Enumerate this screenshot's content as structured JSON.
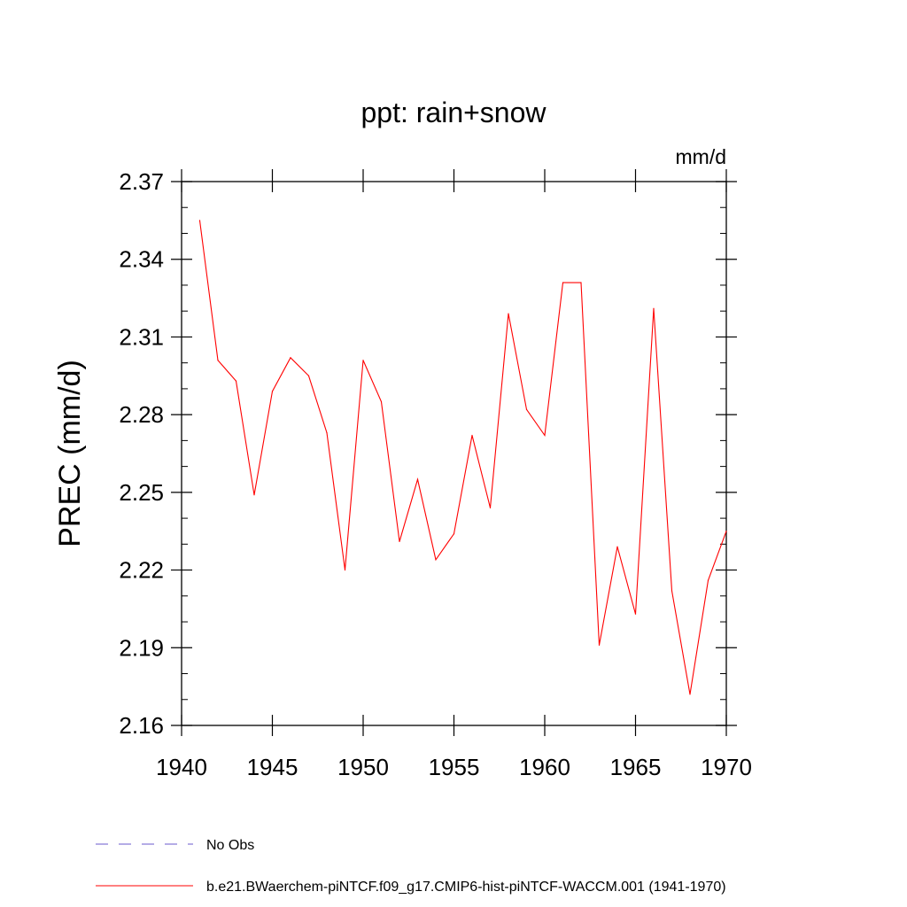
{
  "chart_data": {
    "type": "line",
    "title": "ppt: rain+snow",
    "units_label": "mm/d",
    "ylabel": "PREC  (mm/d)",
    "xlabel": "",
    "xlim": [
      1940,
      1970
    ],
    "ylim": [
      2.16,
      2.37
    ],
    "xticks": [
      1940,
      1945,
      1950,
      1955,
      1960,
      1965,
      1970
    ],
    "xtick_labels": [
      "1940",
      "1945",
      "1950",
      "1955",
      "1960",
      "1965",
      "1970"
    ],
    "yticks": [
      2.16,
      2.19,
      2.22,
      2.25,
      2.28,
      2.31,
      2.34,
      2.37
    ],
    "ytick_labels": [
      "2.16",
      "2.19",
      "2.22",
      "2.25",
      "2.28",
      "2.31",
      "2.34",
      "2.37"
    ],
    "grid": false,
    "legend_position": "bottom-left",
    "legend": [
      {
        "name": "No Obs",
        "color": "#6a5acd",
        "style": "dashed"
      },
      {
        "name": "b.e21.BWaerchem-piNTCF.f09_g17.CMIP6-hist-piNTCF-WACCM.001 (1941-1970)",
        "color": "#ff0000",
        "style": "solid"
      }
    ],
    "series": [
      {
        "name": "b.e21.BWaerchem-piNTCF.f09_g17.CMIP6-hist-piNTCF-WACCM.001 (1941-1970)",
        "color": "#ff0000",
        "x": [
          1941,
          1942,
          1943,
          1944,
          1945,
          1946,
          1947,
          1948,
          1949,
          1950,
          1951,
          1952,
          1953,
          1954,
          1955,
          1956,
          1957,
          1958,
          1959,
          1960,
          1961,
          1962,
          1963,
          1964,
          1965,
          1966,
          1967,
          1968,
          1969,
          1970
        ],
        "y": [
          2.355,
          2.301,
          2.293,
          2.249,
          2.289,
          2.302,
          2.295,
          2.273,
          2.22,
          2.301,
          2.285,
          2.231,
          2.255,
          2.224,
          2.234,
          2.272,
          2.244,
          2.319,
          2.282,
          2.272,
          2.331,
          2.331,
          2.191,
          2.229,
          2.203,
          2.321,
          2.212,
          2.172,
          2.216,
          2.235
        ]
      }
    ]
  }
}
